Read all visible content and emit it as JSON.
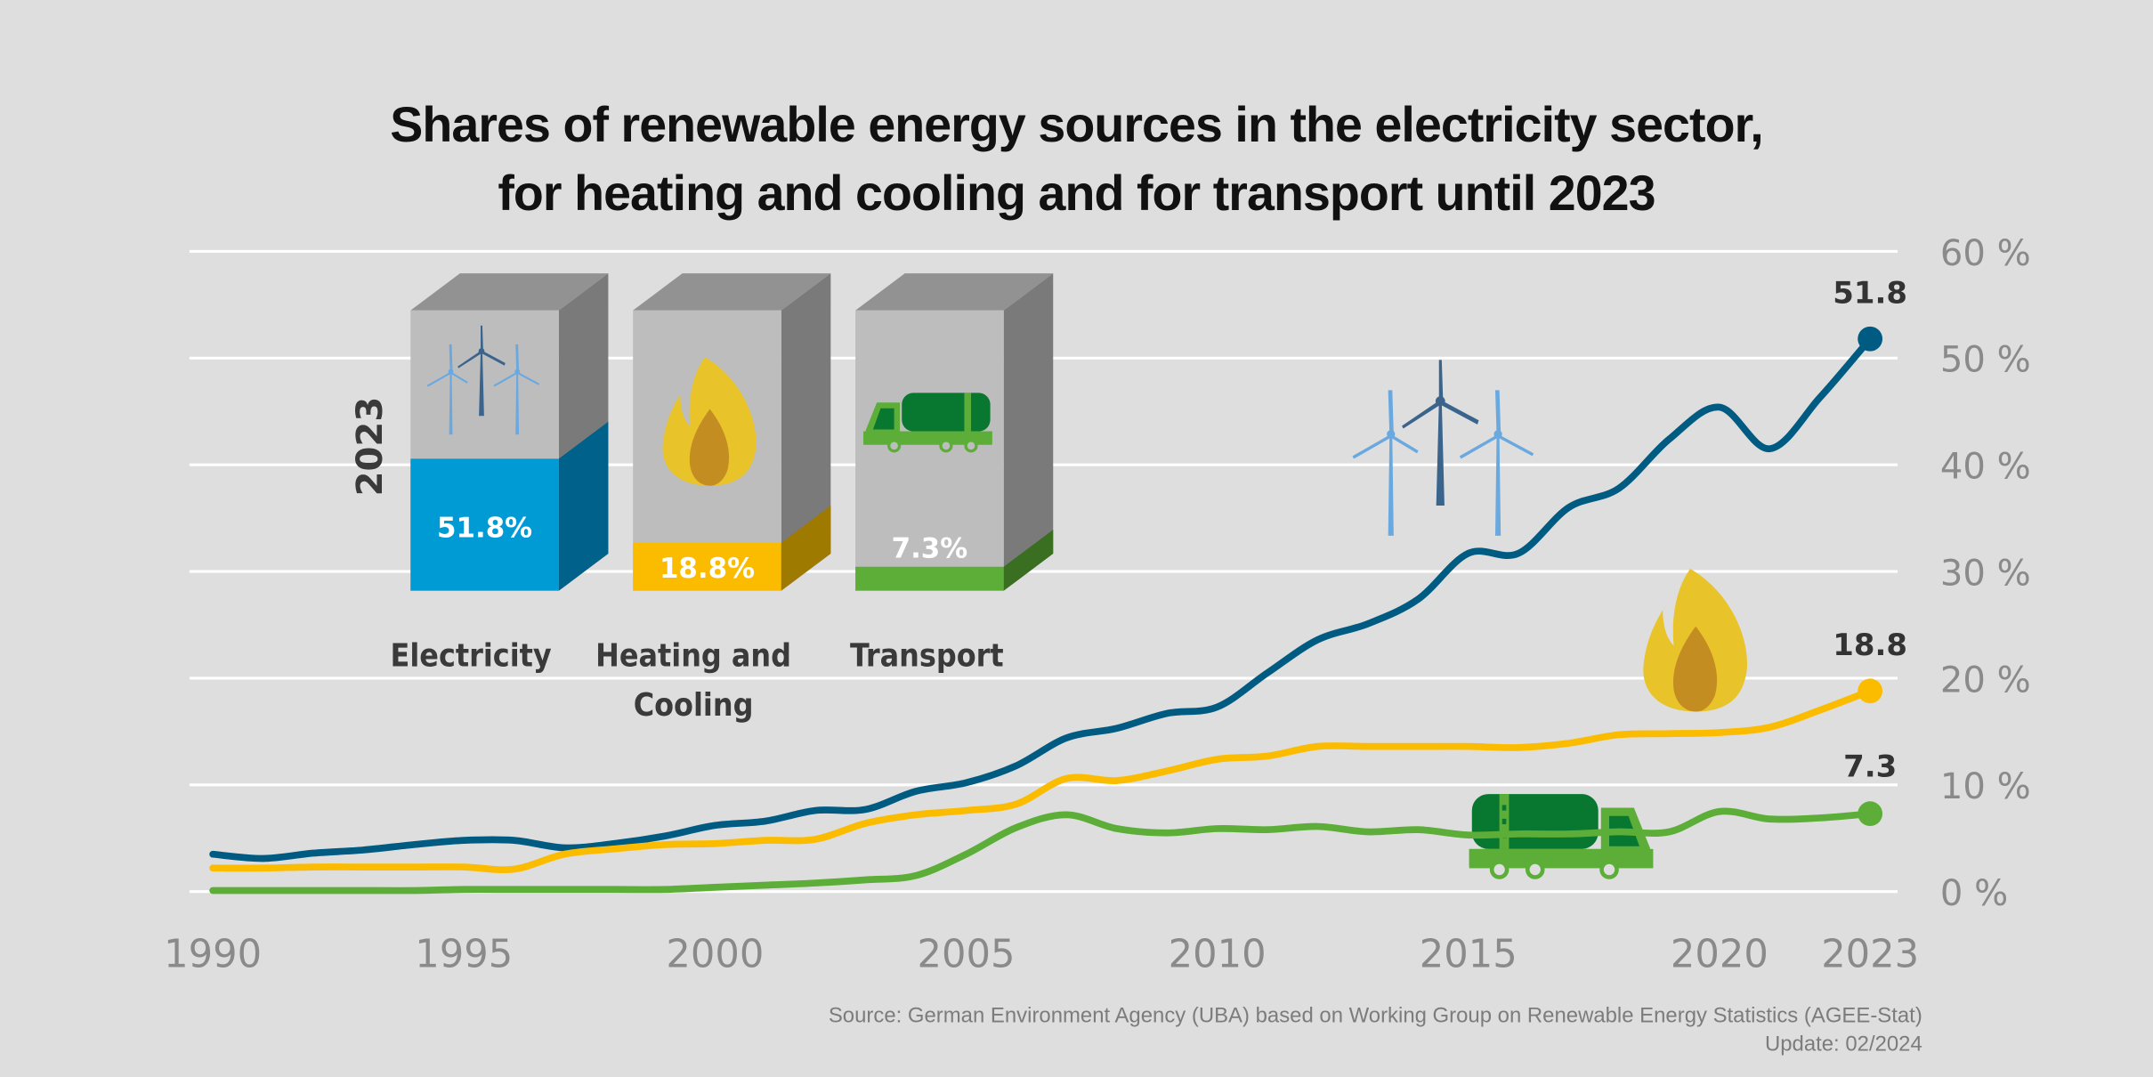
{
  "title": {
    "line1": "Shares of renewable energy sources in the electricity sector,",
    "line2": "for heating and cooling and for transport until 2023"
  },
  "footer": {
    "source": "Source: German Environment Agency (UBA) based on Working Group on Renewable Energy Statistics (AGEE-Stat)",
    "update": "Update: 02/2024"
  },
  "colors": {
    "background": "#dedede",
    "gridline": "#ffffff",
    "electricity_line": "#005b82",
    "heating_line": "#fbbc00",
    "transport_line": "#5cae38",
    "electricity_bar": "#009bd5",
    "electricity_bar_side": "#00628a",
    "heating_bar": "#fbbc00",
    "heating_bar_side": "#9e7a00",
    "transport_bar": "#5cae38",
    "transport_bar_side": "#3a6f22"
  },
  "inset": {
    "year_label": "2023",
    "bars": [
      {
        "category": "Electricity",
        "category_line2": "",
        "value": 51.8,
        "label": "51.8%",
        "icon": "wind-turbines-icon"
      },
      {
        "category": "Heating and",
        "category_line2": "Cooling",
        "value": 18.8,
        "label": "18.8%",
        "icon": "flame-icon"
      },
      {
        "category": "Transport",
        "category_line2": "",
        "value": 7.3,
        "label": "7.3%",
        "icon": "tanker-truck-icon"
      }
    ]
  },
  "chart_data": {
    "type": "line",
    "title": "Shares of renewable energy sources in the electricity sector, for heating and cooling and for transport until 2023",
    "xlabel": "",
    "ylabel": "",
    "x": [
      1990,
      1991,
      1992,
      1993,
      1994,
      1995,
      1996,
      1997,
      1998,
      1999,
      2000,
      2001,
      2002,
      2003,
      2004,
      2005,
      2006,
      2007,
      2008,
      2009,
      2010,
      2011,
      2012,
      2013,
      2014,
      2015,
      2016,
      2017,
      2018,
      2019,
      2020,
      2021,
      2022,
      2023
    ],
    "x_ticks": [
      "1990",
      "1995",
      "2000",
      "2005",
      "2010",
      "2015",
      "2020",
      "2023"
    ],
    "y_ticks": [
      "0 %",
      "10 %",
      "20 %",
      "30 %",
      "40 %",
      "50 %",
      "60 %"
    ],
    "ylim": [
      0,
      60
    ],
    "xlim": [
      1990,
      2023
    ],
    "grid": true,
    "y_axis_side": "right",
    "series": [
      {
        "name": "Electricity",
        "end_label": "51.8",
        "values": [
          3.5,
          3.1,
          3.6,
          3.9,
          4.4,
          4.8,
          4.8,
          4.1,
          4.5,
          5.2,
          6.2,
          6.6,
          7.6,
          7.7,
          9.4,
          10.2,
          11.8,
          14.4,
          15.3,
          16.7,
          17.3,
          20.5,
          23.6,
          25.1,
          27.4,
          31.7,
          31.7,
          36.0,
          37.8,
          42.4,
          45.4,
          41.5,
          46.3,
          51.8
        ]
      },
      {
        "name": "Heating and Cooling",
        "end_label": "18.8",
        "values": [
          2.2,
          2.2,
          2.3,
          2.3,
          2.3,
          2.3,
          2.1,
          3.5,
          4.0,
          4.4,
          4.5,
          4.8,
          4.9,
          6.4,
          7.2,
          7.6,
          8.2,
          10.6,
          10.4,
          11.3,
          12.4,
          12.7,
          13.6,
          13.6,
          13.6,
          13.6,
          13.5,
          13.9,
          14.7,
          14.8,
          14.9,
          15.4,
          17.0,
          18.8
        ]
      },
      {
        "name": "Transport",
        "end_label": "7.3",
        "values": [
          0.1,
          0.1,
          0.1,
          0.1,
          0.1,
          0.2,
          0.2,
          0.2,
          0.2,
          0.2,
          0.4,
          0.6,
          0.8,
          1.1,
          1.5,
          3.5,
          6.0,
          7.2,
          5.9,
          5.5,
          5.9,
          5.8,
          6.1,
          5.6,
          5.8,
          5.3,
          5.4,
          5.4,
          5.6,
          5.6,
          7.5,
          6.8,
          6.9,
          7.3
        ]
      }
    ]
  }
}
